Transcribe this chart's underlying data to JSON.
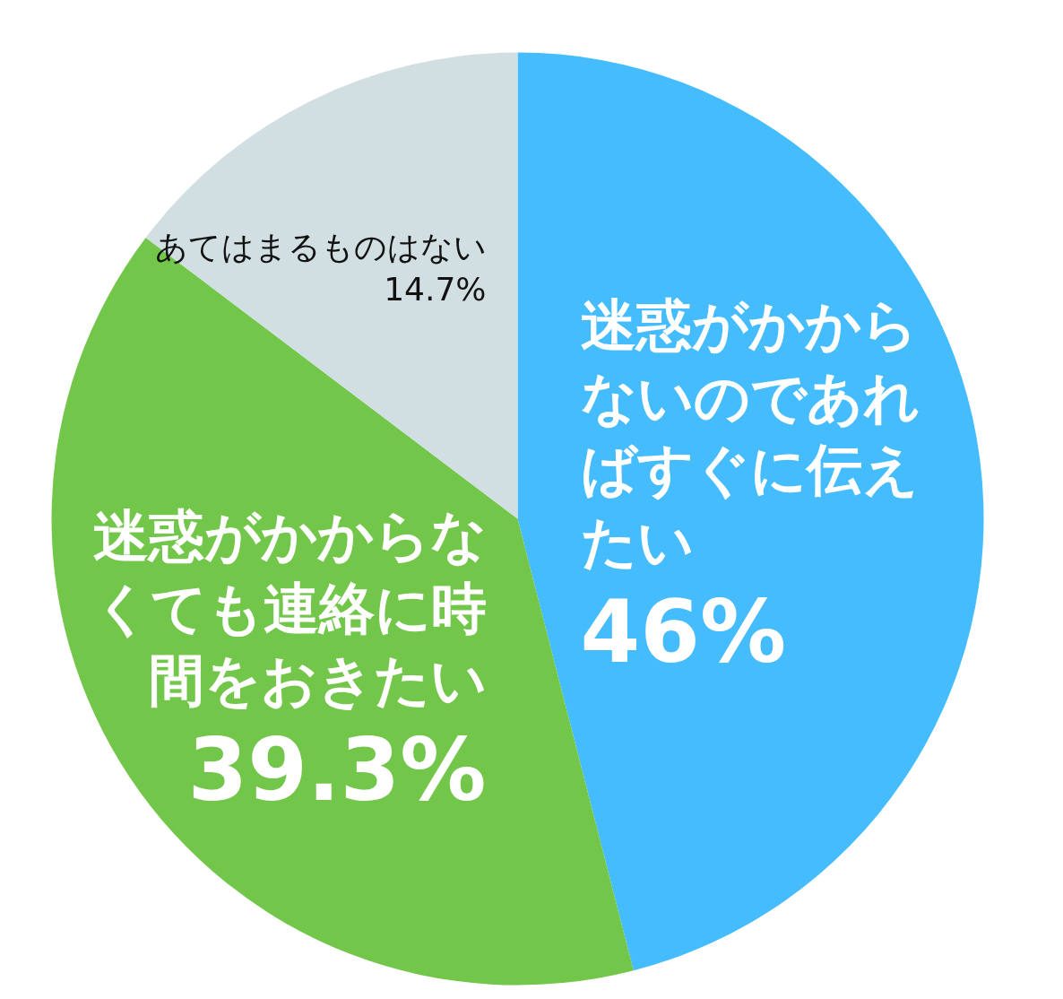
{
  "chart_data": {
    "type": "pie",
    "categories": [
      "迷惑がかからないのであればすぐに伝えたい",
      "迷惑がかからなくても連絡に時間をおきたい",
      "あてはまるものはない"
    ],
    "values": [
      46,
      39.3,
      14.7
    ],
    "colors": [
      "#45bcfd",
      "#72c64a",
      "#d1dfe3"
    ],
    "value_labels": [
      "46%",
      "39.3%",
      "14.7%"
    ]
  }
}
